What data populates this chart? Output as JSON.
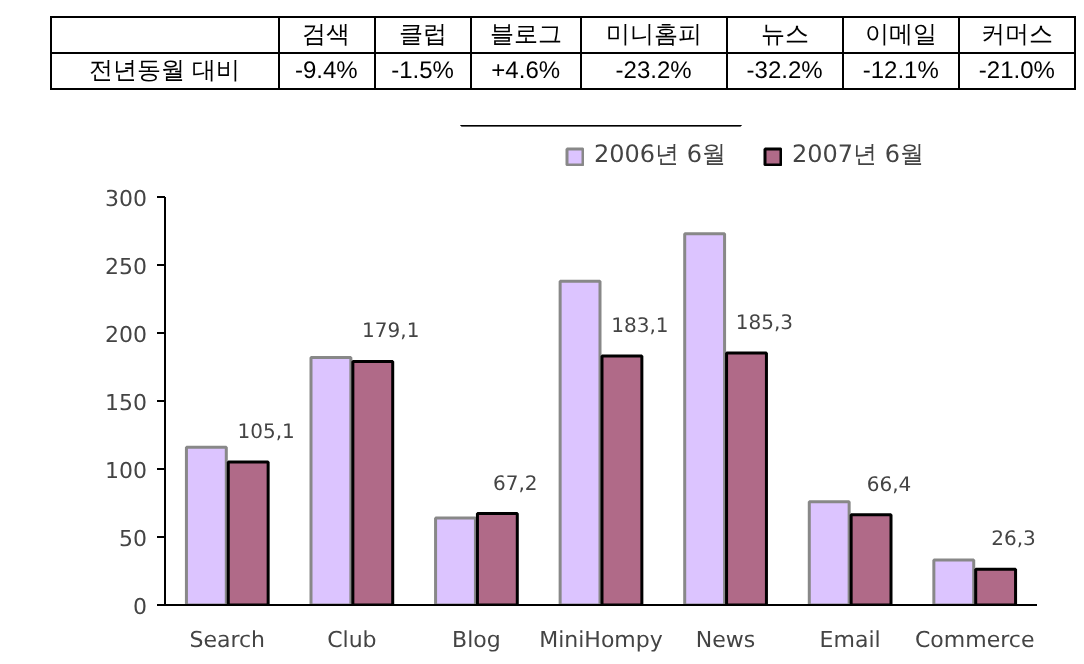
{
  "chart_data": {
    "type": "bar",
    "categories": [
      "Search",
      "Club",
      "Blog",
      "MiniHompy",
      "News",
      "Email",
      "Commerce"
    ],
    "series": [
      {
        "name": "2006년 6월",
        "color": "#dcc4ff",
        "values": [
          116,
          182,
          64,
          238,
          273,
          76,
          33
        ]
      },
      {
        "name": "2007년 6월",
        "color": "#b06a88",
        "values": [
          105.1,
          179.1,
          67.2,
          183.1,
          185.3,
          66.4,
          26.3
        ],
        "value_labels": [
          "105,1",
          "179,1",
          "67,2",
          "183,1",
          "185,3",
          "66,4",
          "26,3"
        ]
      }
    ],
    "ylim": [
      0,
      300
    ],
    "yticks": [
      0,
      50,
      100,
      150,
      200,
      250,
      300
    ],
    "grid": false,
    "legend": "top right",
    "annotations": [
      "검색",
      "클럽",
      "블로그",
      "미니홈피",
      "뉴스",
      "이메일",
      "커머스",
      "전년동월 대비",
      "-9.4%",
      "-1.5%",
      "+4.6%",
      "-23.2%",
      "-32.2%",
      "-12.1%",
      "-21.0%"
    ]
  }
}
